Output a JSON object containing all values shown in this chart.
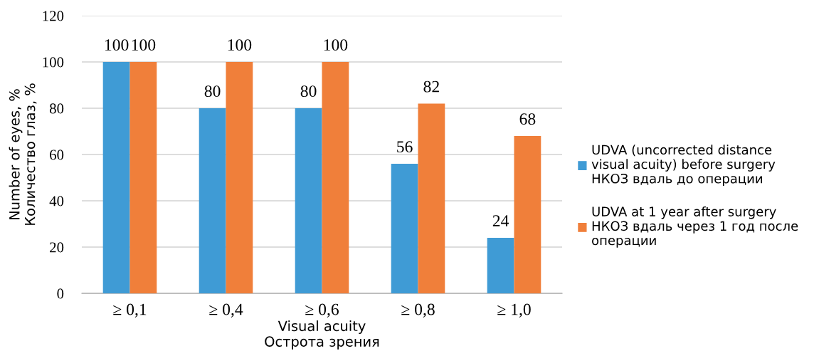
{
  "chart_data": {
    "type": "bar",
    "categories": [
      "≥ 0,1",
      "≥ 0,4",
      "≥ 0,6",
      "≥ 0,8",
      "≥ 1,0"
    ],
    "series": [
      {
        "name": "UDVA (uncorrected distance\nvisual acuity) before surgery\nНКОЗ вдаль до операции",
        "color": "#3f9bd5",
        "values": [
          100,
          80,
          80,
          56,
          24
        ]
      },
      {
        "name": "UDVA at 1 year after surgery\nНКОЗ вдаль через 1 год после\nоперации",
        "color": "#f07f3a",
        "values": [
          100,
          100,
          100,
          82,
          68
        ]
      }
    ],
    "xlabel": "Visual acuity\nОстрота зрения",
    "ylabel": "Number of eyes, %\nКоличество глаз, %",
    "ylim": [
      0,
      120
    ],
    "yticks": [
      0,
      20,
      40,
      60,
      80,
      100,
      120
    ],
    "grid": "y",
    "legend": "right",
    "data_labels": true
  }
}
